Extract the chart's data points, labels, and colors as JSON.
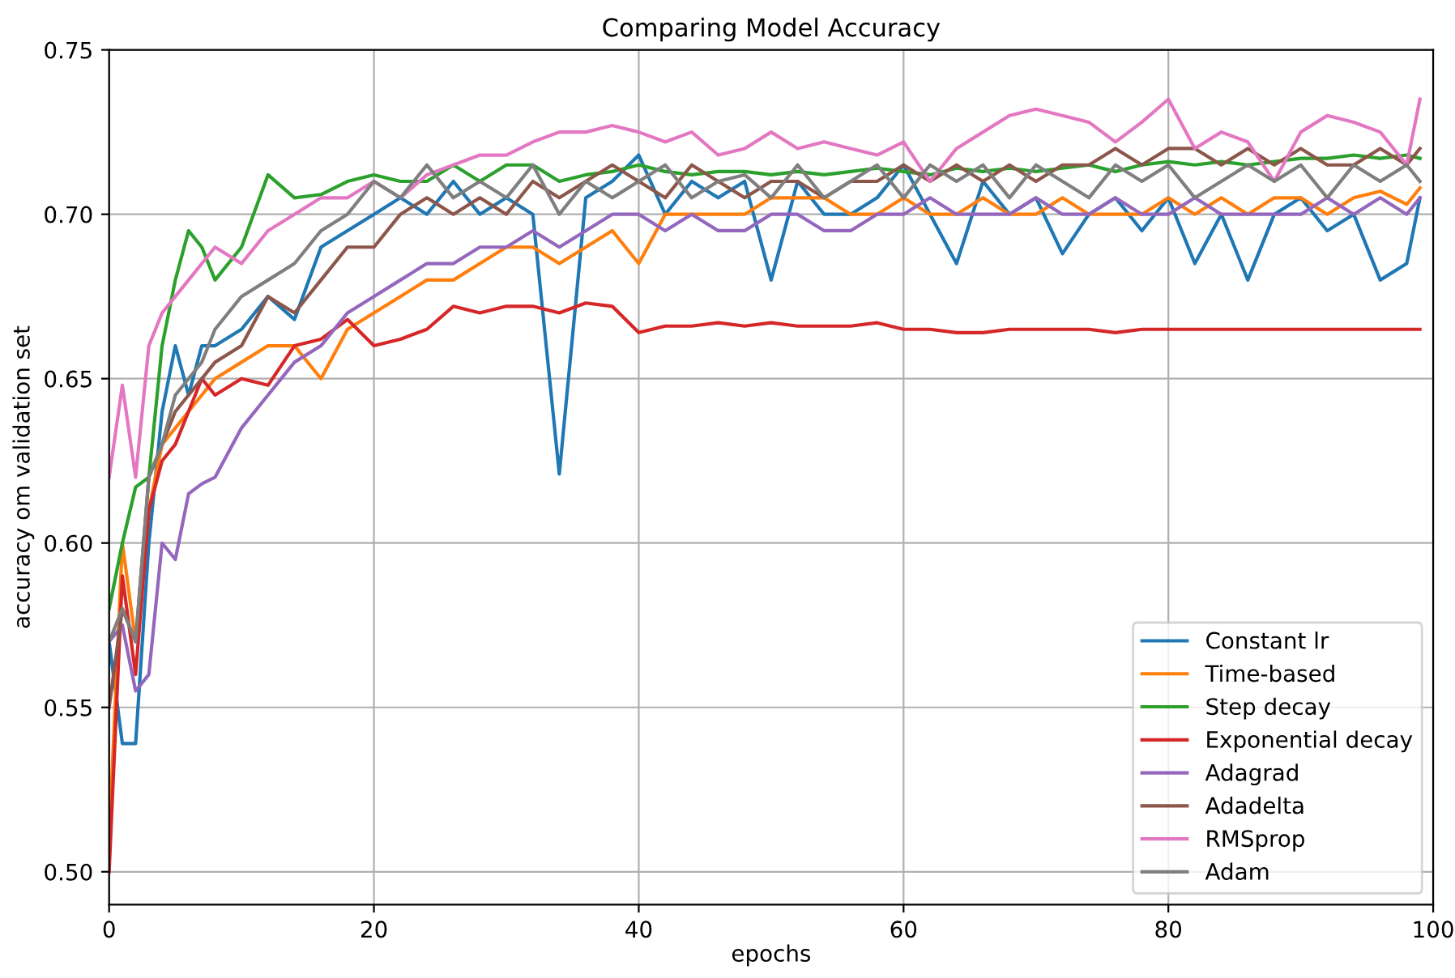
{
  "chart_data": {
    "type": "line",
    "title": "Comparing Model Accuracy",
    "xlabel": "epochs",
    "ylabel": "accuracy om validation set",
    "x": [
      0,
      1,
      2,
      3,
      4,
      5,
      6,
      7,
      8,
      10,
      12,
      14,
      16,
      18,
      20,
      22,
      24,
      26,
      28,
      30,
      32,
      34,
      36,
      38,
      40,
      42,
      44,
      46,
      48,
      50,
      52,
      54,
      56,
      58,
      60,
      62,
      64,
      66,
      68,
      70,
      72,
      74,
      76,
      78,
      80,
      82,
      84,
      86,
      88,
      90,
      92,
      94,
      96,
      98,
      99
    ],
    "series": [
      {
        "name": "Constant lr",
        "color": "#1f77b4",
        "values": [
          0.57,
          0.539,
          0.539,
          0.6,
          0.64,
          0.66,
          0.645,
          0.66,
          0.66,
          0.665,
          0.675,
          0.668,
          0.69,
          0.695,
          0.7,
          0.705,
          0.7,
          0.71,
          0.7,
          0.705,
          0.7,
          0.621,
          0.705,
          0.71,
          0.718,
          0.7,
          0.71,
          0.705,
          0.71,
          0.68,
          0.71,
          0.7,
          0.7,
          0.705,
          0.715,
          0.7,
          0.685,
          0.71,
          0.7,
          0.705,
          0.688,
          0.7,
          0.705,
          0.695,
          0.705,
          0.685,
          0.7,
          0.68,
          0.7,
          0.705,
          0.695,
          0.7,
          0.68,
          0.685,
          0.705
        ]
      },
      {
        "name": "Time-based",
        "color": "#ff7f0e",
        "values": [
          0.51,
          0.6,
          0.57,
          0.61,
          0.63,
          0.635,
          0.64,
          0.645,
          0.65,
          0.655,
          0.66,
          0.66,
          0.65,
          0.665,
          0.67,
          0.675,
          0.68,
          0.68,
          0.685,
          0.69,
          0.69,
          0.685,
          0.69,
          0.695,
          0.685,
          0.7,
          0.7,
          0.7,
          0.7,
          0.705,
          0.705,
          0.705,
          0.7,
          0.7,
          0.705,
          0.7,
          0.7,
          0.705,
          0.7,
          0.7,
          0.705,
          0.7,
          0.7,
          0.7,
          0.705,
          0.7,
          0.705,
          0.7,
          0.705,
          0.705,
          0.7,
          0.705,
          0.707,
          0.703,
          0.708
        ]
      },
      {
        "name": "Step decay",
        "color": "#2ca02c",
        "values": [
          0.58,
          0.6,
          0.617,
          0.62,
          0.66,
          0.68,
          0.695,
          0.69,
          0.68,
          0.69,
          0.712,
          0.705,
          0.706,
          0.71,
          0.712,
          0.71,
          0.71,
          0.715,
          0.71,
          0.715,
          0.715,
          0.71,
          0.712,
          0.713,
          0.715,
          0.713,
          0.712,
          0.713,
          0.713,
          0.712,
          0.713,
          0.712,
          0.713,
          0.714,
          0.713,
          0.712,
          0.714,
          0.713,
          0.714,
          0.713,
          0.714,
          0.715,
          0.713,
          0.715,
          0.716,
          0.715,
          0.716,
          0.715,
          0.716,
          0.717,
          0.717,
          0.718,
          0.717,
          0.718,
          0.717
        ]
      },
      {
        "name": "Exponential decay",
        "color": "#d62728",
        "values": [
          0.5,
          0.59,
          0.56,
          0.61,
          0.625,
          0.63,
          0.64,
          0.65,
          0.645,
          0.65,
          0.648,
          0.66,
          0.662,
          0.668,
          0.66,
          0.662,
          0.665,
          0.672,
          0.67,
          0.672,
          0.672,
          0.67,
          0.673,
          0.672,
          0.664,
          0.666,
          0.666,
          0.667,
          0.666,
          0.667,
          0.666,
          0.666,
          0.666,
          0.667,
          0.665,
          0.665,
          0.664,
          0.664,
          0.665,
          0.665,
          0.665,
          0.665,
          0.664,
          0.665,
          0.665,
          0.665,
          0.665,
          0.665,
          0.665,
          0.665,
          0.665,
          0.665,
          0.665,
          0.665,
          0.665
        ]
      },
      {
        "name": "Adagrad",
        "color": "#9467bd",
        "values": [
          0.57,
          0.575,
          0.555,
          0.56,
          0.6,
          0.595,
          0.615,
          0.618,
          0.62,
          0.635,
          0.645,
          0.655,
          0.66,
          0.67,
          0.675,
          0.68,
          0.685,
          0.685,
          0.69,
          0.69,
          0.695,
          0.69,
          0.695,
          0.7,
          0.7,
          0.695,
          0.7,
          0.695,
          0.695,
          0.7,
          0.7,
          0.695,
          0.695,
          0.7,
          0.7,
          0.705,
          0.7,
          0.7,
          0.7,
          0.705,
          0.7,
          0.7,
          0.705,
          0.7,
          0.7,
          0.705,
          0.7,
          0.7,
          0.7,
          0.7,
          0.705,
          0.7,
          0.705,
          0.7,
          0.705
        ]
      },
      {
        "name": "Adadelta",
        "color": "#8c564b",
        "values": [
          0.55,
          0.58,
          0.57,
          0.62,
          0.63,
          0.64,
          0.645,
          0.65,
          0.655,
          0.66,
          0.675,
          0.67,
          0.68,
          0.69,
          0.69,
          0.7,
          0.705,
          0.7,
          0.705,
          0.7,
          0.71,
          0.705,
          0.71,
          0.715,
          0.71,
          0.705,
          0.715,
          0.71,
          0.705,
          0.71,
          0.71,
          0.705,
          0.71,
          0.71,
          0.715,
          0.71,
          0.715,
          0.71,
          0.715,
          0.71,
          0.715,
          0.715,
          0.72,
          0.715,
          0.72,
          0.72,
          0.715,
          0.72,
          0.715,
          0.72,
          0.715,
          0.715,
          0.72,
          0.715,
          0.72
        ]
      },
      {
        "name": "RMSprop",
        "color": "#e377c2",
        "values": [
          0.62,
          0.648,
          0.62,
          0.66,
          0.67,
          0.675,
          0.68,
          0.685,
          0.69,
          0.685,
          0.695,
          0.7,
          0.705,
          0.705,
          0.71,
          0.705,
          0.712,
          0.715,
          0.718,
          0.718,
          0.722,
          0.725,
          0.725,
          0.727,
          0.725,
          0.722,
          0.725,
          0.718,
          0.72,
          0.725,
          0.72,
          0.722,
          0.72,
          0.718,
          0.722,
          0.71,
          0.72,
          0.725,
          0.73,
          0.732,
          0.73,
          0.728,
          0.722,
          0.728,
          0.735,
          0.72,
          0.725,
          0.722,
          0.71,
          0.725,
          0.73,
          0.728,
          0.725,
          0.715,
          0.735
        ]
      },
      {
        "name": "Adam",
        "color": "#7f7f7f",
        "values": [
          0.57,
          0.58,
          0.57,
          0.62,
          0.63,
          0.645,
          0.65,
          0.655,
          0.665,
          0.675,
          0.68,
          0.685,
          0.695,
          0.7,
          0.71,
          0.705,
          0.715,
          0.705,
          0.71,
          0.705,
          0.715,
          0.7,
          0.71,
          0.705,
          0.71,
          0.715,
          0.705,
          0.71,
          0.712,
          0.705,
          0.715,
          0.705,
          0.71,
          0.715,
          0.705,
          0.715,
          0.71,
          0.715,
          0.705,
          0.715,
          0.71,
          0.705,
          0.715,
          0.71,
          0.715,
          0.705,
          0.71,
          0.715,
          0.71,
          0.715,
          0.705,
          0.715,
          0.71,
          0.715,
          0.71
        ]
      }
    ],
    "xlim": [
      0,
      100
    ],
    "xticks": [
      0,
      20,
      40,
      60,
      80,
      100
    ],
    "ylim": [
      0.49,
      0.75
    ],
    "yticks": [
      {
        "value": 0.5,
        "label": "0.50"
      },
      {
        "value": 0.55,
        "label": "0.55"
      },
      {
        "value": 0.6,
        "label": "0.60"
      },
      {
        "value": 0.65,
        "label": "0.65"
      },
      {
        "value": 0.7,
        "label": "0.70"
      },
      {
        "value": 0.75,
        "label": "0.75"
      }
    ],
    "grid": true,
    "legend": "lower right"
  }
}
